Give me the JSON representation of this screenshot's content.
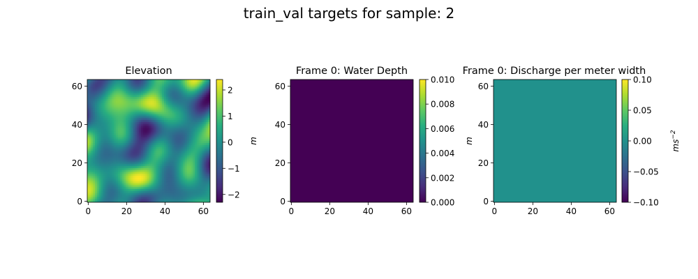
{
  "figure": {
    "suptitle": "train_val targets for sample: 2"
  },
  "chart_data": [
    {
      "type": "heatmap",
      "title": "Elevation",
      "xlim": [
        0,
        63
      ],
      "ylim": [
        0,
        63
      ],
      "xticks": [
        "0",
        "20",
        "40",
        "60"
      ],
      "yticks": [
        "0",
        "20",
        "40",
        "60"
      ],
      "colormap": "viridis",
      "colorbar": {
        "label": "m",
        "range": [
          -2.3,
          2.4
        ],
        "ticks": [
          "−2",
          "−1",
          "0",
          "1",
          "2"
        ],
        "tick_values": [
          -2,
          -1,
          0,
          1,
          2
        ]
      },
      "field": "smooth random terrain",
      "grid": false
    },
    {
      "type": "heatmap",
      "title": "Frame 0: Water Depth",
      "xlim": [
        0,
        63
      ],
      "ylim": [
        0,
        63
      ],
      "xticks": [
        "0",
        "20",
        "40",
        "60"
      ],
      "yticks": [
        "0",
        "20",
        "40",
        "60"
      ],
      "colormap": "viridis",
      "colorbar": {
        "label": "m",
        "range": [
          0.0,
          0.01
        ],
        "ticks": [
          "0.000",
          "0.002",
          "0.004",
          "0.006",
          "0.008",
          "0.010"
        ],
        "tick_values": [
          0,
          0.002,
          0.004,
          0.006,
          0.008,
          0.01
        ]
      },
      "uniform_value": 0.0,
      "grid": false
    },
    {
      "type": "heatmap",
      "title": "Frame 0: Discharge per meter width",
      "xlim": [
        0,
        63
      ],
      "ylim": [
        0,
        63
      ],
      "xticks": [
        "0",
        "20",
        "40",
        "60"
      ],
      "yticks": [
        "0",
        "20",
        "40",
        "60"
      ],
      "colormap": "viridis",
      "colorbar": {
        "label": "ms",
        "label_superscript": "−2",
        "range": [
          -0.1,
          0.1
        ],
        "ticks": [
          "−0.10",
          "−0.05",
          "0.00",
          "0.05",
          "0.10"
        ],
        "tick_values": [
          -0.1,
          -0.05,
          0,
          0.05,
          0.1
        ]
      },
      "uniform_value": 0.0,
      "grid": false
    }
  ]
}
